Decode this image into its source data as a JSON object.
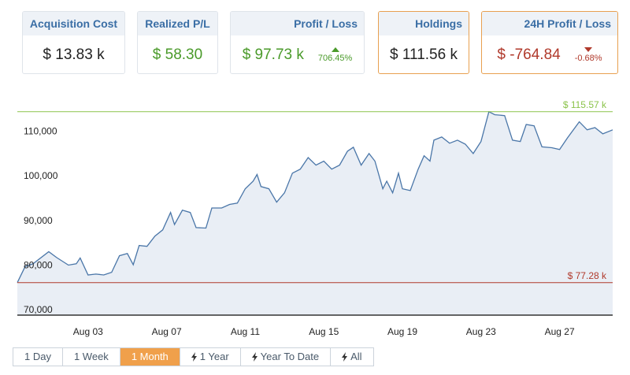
{
  "cards": [
    {
      "title": "Acquisition Cost",
      "value": "$ 13.83 k",
      "tone": "neutral",
      "highlighted": false
    },
    {
      "title": "Realized P/L",
      "value": "$ 58.30",
      "tone": "positive",
      "highlighted": false
    },
    {
      "title": "Profit / Loss",
      "value": "$ 97.73 k",
      "tone": "positive",
      "highlighted": false,
      "change": "706.45%",
      "trend": "up"
    },
    {
      "title": "Holdings",
      "value": "$ 111.56 k",
      "tone": "neutral",
      "highlighted": true
    },
    {
      "title": "24H Profit / Loss",
      "value": "$ -764.84",
      "tone": "negative",
      "highlighted": true,
      "change": "-0.68%",
      "trend": "down"
    }
  ],
  "chart_data": {
    "type": "line",
    "color": "#4a76a8",
    "fill": "#e9eef5",
    "x": [
      -0.6,
      -0.2,
      0.2,
      1.0,
      1.4,
      2.0,
      2.4,
      2.6,
      3.0,
      3.4,
      3.8,
      4.2,
      4.6,
      5.0,
      5.3,
      5.6,
      6.0,
      6.4,
      6.8,
      7.2,
      7.4,
      7.8,
      8.2,
      8.5,
      9.0,
      9.3,
      9.8,
      10.2,
      10.6,
      11.0,
      11.4,
      11.6,
      11.8,
      12.2,
      12.6,
      13.0,
      13.4,
      13.8,
      14.2,
      14.6,
      15.0,
      15.4,
      15.8,
      16.2,
      16.5,
      16.9,
      17.3,
      17.6,
      18.0,
      18.2,
      18.5,
      18.8,
      19.0,
      19.4,
      19.8,
      20.1,
      20.4,
      20.6,
      21.0,
      21.4,
      21.8,
      22.2,
      22.6,
      23.0,
      23.4,
      23.7,
      24.2,
      24.6,
      25.0,
      25.3,
      25.7,
      26.1,
      26.6,
      27.0,
      27.4,
      28.0,
      28.4,
      28.8,
      29.2,
      29.7
    ],
    "values": [
      77280,
      80900,
      81500,
      84200,
      82900,
      81200,
      81500,
      82800,
      79000,
      79200,
      79000,
      79600,
      83300,
      83800,
      81300,
      85600,
      85400,
      87700,
      89100,
      93000,
      90300,
      93500,
      93000,
      89600,
      89500,
      94000,
      94000,
      94800,
      95100,
      98300,
      100000,
      101500,
      98800,
      98300,
      95300,
      97400,
      101800,
      102700,
      105300,
      103600,
      104500,
      102700,
      103600,
      106700,
      107600,
      103600,
      106200,
      104500,
      98300,
      100000,
      97400,
      101800,
      98300,
      97900,
      102700,
      105700,
      104500,
      109200,
      109900,
      108500,
      109200,
      108300,
      106200,
      108900,
      115570,
      114900,
      114700,
      109200,
      108900,
      112700,
      112400,
      107700,
      107500,
      107100,
      109700,
      113300,
      111500,
      112000,
      110600,
      111500
    ],
    "xlim": [
      -0.6,
      29.7
    ],
    "ylim": [
      70000,
      118000
    ],
    "xticks": [
      {
        "value": 3,
        "label": "Aug 03"
      },
      {
        "value": 7,
        "label": "Aug 07"
      },
      {
        "value": 11,
        "label": "Aug 11"
      },
      {
        "value": 15,
        "label": "Aug 15"
      },
      {
        "value": 19,
        "label": "Aug 19"
      },
      {
        "value": 23,
        "label": "Aug 23"
      },
      {
        "value": 27,
        "label": "Aug 27"
      }
    ],
    "yticks": [
      {
        "value": 70000,
        "label": "70,000"
      },
      {
        "value": 80000,
        "label": "80,000"
      },
      {
        "value": 90000,
        "label": "90,000"
      },
      {
        "value": 100000,
        "label": "100,000"
      },
      {
        "value": 110000,
        "label": "110,000"
      }
    ],
    "reference_lines": [
      {
        "value": 115570,
        "label": "$ 115.57 k",
        "color": "#8bc34a"
      },
      {
        "value": 77280,
        "label": "$ 77.28 k",
        "color": "#b0392b"
      }
    ]
  },
  "buttons": [
    {
      "label": "1 Day",
      "active": false,
      "icon": false
    },
    {
      "label": "1 Week",
      "active": false,
      "icon": false
    },
    {
      "label": "1 Month",
      "active": true,
      "icon": false
    },
    {
      "label": "1 Year",
      "active": false,
      "icon": true
    },
    {
      "label": "Year To Date",
      "active": false,
      "icon": true
    },
    {
      "label": "All",
      "active": false,
      "icon": true
    }
  ]
}
